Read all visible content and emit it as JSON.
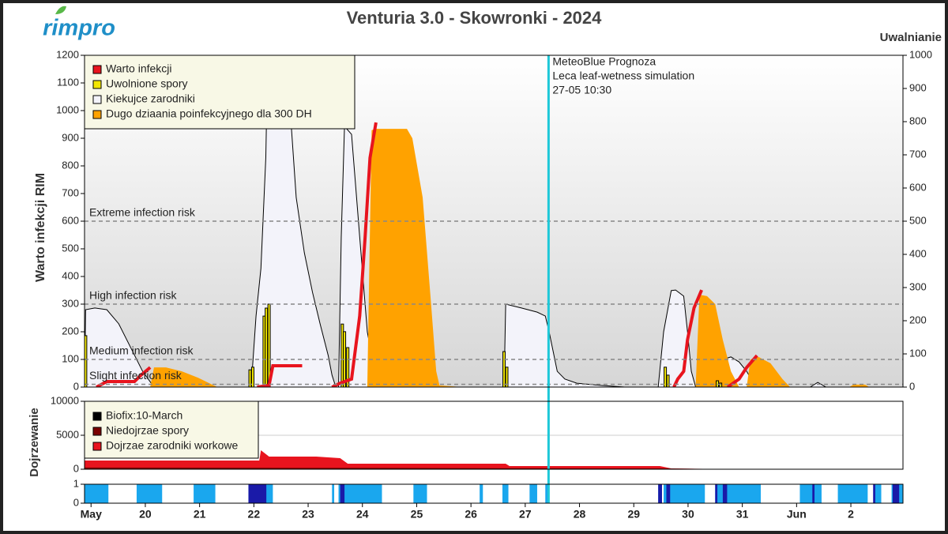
{
  "chart_data": [
    {
      "type": "combo",
      "title": "Venturia 3.0 - Skowronki - 2024",
      "logo": "rimpro",
      "y_label": "Warto infekcji RIM",
      "y2_label": "Uwalnianie",
      "xlim": [
        -0.12,
        14.96
      ],
      "ylim": [
        0,
        1200
      ],
      "yticks": [
        0,
        100,
        200,
        300,
        400,
        500,
        600,
        700,
        800,
        900,
        1000,
        1100,
        1200
      ],
      "y2lim": [
        0,
        1000
      ],
      "y2ticks": [
        0,
        100,
        200,
        300,
        400,
        500,
        600,
        700,
        800,
        900,
        1000
      ],
      "series": [
        {
          "name": "Warto infekcji",
          "type": "line",
          "color": "#e8141e",
          "x": [
            0.1,
            0.29,
            0.8,
            0.92,
            1.09,
            null,
            3.06,
            3.28,
            3.35,
            3.89,
            null,
            4.44,
            4.59,
            4.8,
            4.95,
            5.05,
            5.14,
            5.25,
            null,
            10.74,
            10.81,
            10.92,
            10.99,
            11.11,
            11.25,
            null,
            11.73,
            11.94,
            12.08,
            12.27
          ],
          "values": [
            0,
            20,
            20,
            43,
            71,
            null,
            0,
            6,
            77,
            77,
            null,
            0,
            14,
            29,
            257,
            543,
            829,
            957,
            null,
            0,
            29,
            57,
            171,
            286,
            351,
            null,
            0,
            29,
            71,
            114
          ]
        },
        {
          "name": "Uwolnione spory",
          "type": "bar",
          "axis": "y2",
          "color": "#f2e600",
          "x": [
            -0.1,
            2.93,
            2.98,
            3.19,
            3.23,
            3.28,
            4.63,
            4.67,
            4.73,
            7.61,
            7.66,
            10.58,
            10.63,
            11.54,
            11.6
          ],
          "values": [
            155,
            52,
            60,
            214,
            238,
            250,
            190,
            167,
            119,
            107,
            60,
            60,
            36,
            19,
            12
          ]
        },
        {
          "name": "Kiekujce zarodniki",
          "type": "area",
          "color": "#f3f3fa",
          "x": [
            -0.12,
            -0.1,
            0.07,
            0.29,
            0.51,
            0.73,
            0.95,
            1.16,
            null,
            2.95,
            3.04,
            3.13,
            3.22,
            3.3,
            3.54,
            3.6,
            3.68,
            3.78,
            3.93,
            4.08,
            4.22,
            4.37,
            4.44,
            4.51,
            null,
            4.56,
            4.61,
            4.67,
            4.8,
            4.95,
            5.09,
            5.28,
            null,
            7.61,
            7.64,
            7.93,
            8.22,
            8.37,
            8.44,
            8.59,
            8.73,
            8.95,
            9.39,
            9.83,
            null,
            10.45,
            10.55,
            10.69,
            10.77,
            10.92,
            10.99,
            11.06,
            11.14,
            null,
            11.5,
            11.64,
            11.79,
            11.94,
            12.08,
            12.23,
            12.3,
            null,
            13.25,
            13.39,
            13.54
          ],
          "values": [
            0,
            280,
            286,
            280,
            229,
            143,
            57,
            0,
            null,
            0,
            257,
            429,
            829,
            1686,
            1686,
            1114,
            971,
            686,
            486,
            343,
            229,
            114,
            43,
            0,
            null,
            0,
            543,
            943,
            914,
            543,
            200,
            0,
            null,
            0,
            300,
            286,
            271,
            257,
            200,
            57,
            29,
            14,
            6,
            0,
            null,
            0,
            200,
            349,
            351,
            329,
            200,
            57,
            0,
            null,
            0,
            100,
            109,
            91,
            57,
            6,
            0,
            null,
            0,
            17,
            0
          ]
        },
        {
          "name": "Dugo dziaania poinfekcyjnego dla 300 DH",
          "type": "area",
          "color": "#ffa200",
          "x": [
            1.09,
            1.16,
            1.38,
            1.67,
            1.97,
            2.26,
            2.33,
            null,
            5.09,
            5.17,
            5.24,
            5.82,
            5.92,
            6.11,
            6.26,
            6.36,
            6.42,
            6.84,
            null,
            11.14,
            11.21,
            11.35,
            11.5,
            11.64,
            11.79,
            11.94,
            null,
            12.08,
            12.15,
            12.3,
            12.52,
            12.74,
            12.88,
            null,
            13.97,
            14.05,
            14.26,
            14.34
          ],
          "values": [
            0,
            71,
            71,
            57,
            34,
            6,
            0,
            null,
            0,
            929,
            934,
            934,
            900,
            686,
            314,
            57,
            6,
            0,
            null,
            0,
            334,
            329,
            300,
            171,
            57,
            0,
            null,
            0,
            100,
            109,
            86,
            29,
            0,
            null,
            0,
            9,
            9,
            0
          ]
        }
      ],
      "thresholds": [
        {
          "label": "Extreme infection risk",
          "value": 600
        },
        {
          "label": "High infection risk",
          "value": 300
        },
        {
          "label": "Medium infection risk",
          "value": 100
        },
        {
          "label": "Slight infection risk",
          "value": 10
        }
      ],
      "forecast": {
        "x": 8.43,
        "lines": [
          "MeteoBlue Prognoza",
          "Leca leaf-wetness simulation",
          "27-05 10:30"
        ]
      }
    },
    {
      "type": "area",
      "y_label": "Dojrzewanie",
      "xlim": [
        -0.12,
        14.96
      ],
      "ylim": [
        0,
        10000
      ],
      "yticks": [
        0,
        5000,
        10000
      ],
      "grid": true,
      "biofix": {
        "name": "Biofix:10-March",
        "color": "#000000"
      },
      "series": [
        {
          "name": "Niedojrzae spory",
          "color": "#7a0000",
          "x": [
            -0.12,
            4.73,
            10.69,
            11.79
          ],
          "values": [
            250,
            200,
            100,
            0
          ]
        },
        {
          "name": "Dojrzae zarodniki workowe",
          "color": "#e8141e",
          "x": [
            -0.12,
            3.1,
            3.13,
            3.28,
            4.15,
            4.59,
            4.73,
            7.64,
            7.71,
            10.48,
            10.69,
            11.79
          ],
          "values": [
            1279,
            1279,
            2791,
            1860,
            1860,
            1628,
            814,
            814,
            465,
            465,
            116,
            0
          ]
        }
      ]
    },
    {
      "type": "timeline",
      "xlim": [
        -0.12,
        14.96
      ],
      "ylim": [
        0,
        1
      ],
      "yticks": [
        0,
        1
      ],
      "xticks": [
        {
          "value": 0,
          "label": "May"
        },
        {
          "value": 1,
          "label": "20"
        },
        {
          "value": 2,
          "label": "21"
        },
        {
          "value": 3,
          "label": "22"
        },
        {
          "value": 4,
          "label": "23"
        },
        {
          "value": 5,
          "label": "24"
        },
        {
          "value": 6,
          "label": "25"
        },
        {
          "value": 7,
          "label": "26"
        },
        {
          "value": 8,
          "label": "27"
        },
        {
          "value": 9,
          "label": "28"
        },
        {
          "value": 10,
          "label": "29"
        },
        {
          "value": 11,
          "label": "30"
        },
        {
          "value": 12,
          "label": "31"
        },
        {
          "value": 13,
          "label": "Jun"
        },
        {
          "value": 14,
          "label": "2"
        }
      ],
      "series": [
        {
          "color": "#1aa7ee",
          "intervals": [
            [
              -0.12,
              0.32
            ],
            [
              0.84,
              1.31
            ],
            [
              1.89,
              2.29
            ],
            [
              2.9,
              3.35
            ],
            [
              4.44,
              4.48
            ],
            [
              4.56,
              5.36
            ],
            [
              5.94,
              6.19
            ],
            [
              7.16,
              7.22
            ],
            [
              7.58,
              7.69
            ],
            [
              8.08,
              8.22
            ],
            [
              8.37,
              8.43
            ],
            [
              10.45,
              10.52
            ],
            [
              10.55,
              11.31
            ],
            [
              11.5,
              12.34
            ],
            [
              13.06,
              13.46
            ],
            [
              13.76,
              14.31
            ],
            [
              14.43,
              14.56
            ],
            [
              14.75,
              14.96
            ]
          ]
        },
        {
          "color": "#1a1aa8",
          "intervals": [
            [
              2.9,
              3.23
            ],
            [
              4.59,
              4.67
            ],
            [
              10.45,
              10.52
            ],
            [
              10.6,
              10.67
            ],
            [
              11.5,
              11.54
            ],
            [
              11.64,
              11.72
            ],
            [
              13.29,
              13.33
            ],
            [
              14.41,
              14.45
            ],
            [
              14.77,
              14.89
            ]
          ]
        }
      ]
    }
  ]
}
